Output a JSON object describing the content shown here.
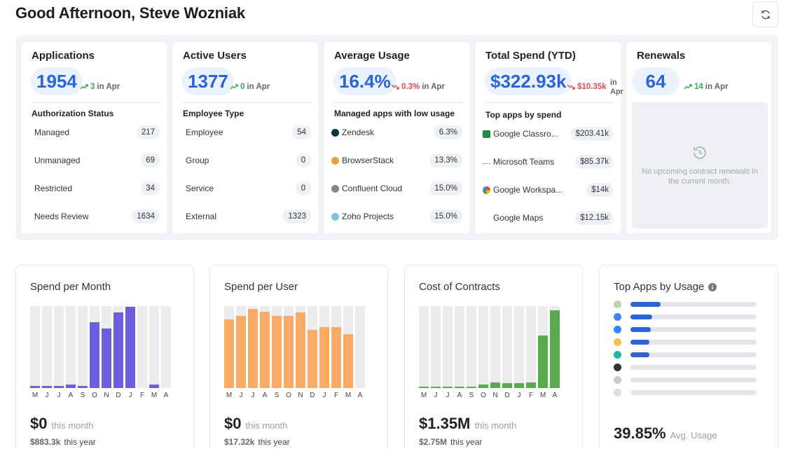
{
  "greeting": "Good Afternoon, Steve Wozniak",
  "stats": {
    "applications": {
      "title": "Applications",
      "value": "1954",
      "trend": "3",
      "trend_suffix": "in Apr",
      "section": "Authorization Status",
      "rows": [
        {
          "label": "Managed",
          "value": "217"
        },
        {
          "label": "Unmanaged",
          "value": "69"
        },
        {
          "label": "Restricted",
          "value": "34"
        },
        {
          "label": "Needs Review",
          "value": "1634"
        }
      ]
    },
    "users": {
      "title": "Active Users",
      "value": "1377",
      "trend": "0",
      "trend_suffix": "in Apr",
      "section": "Employee Type",
      "rows": [
        {
          "label": "Employee",
          "value": "54"
        },
        {
          "label": "Group",
          "value": "0"
        },
        {
          "label": "Service",
          "value": "0"
        },
        {
          "label": "External",
          "value": "1323"
        }
      ]
    },
    "usage": {
      "title": "Average Usage",
      "value": "16.4%",
      "trend": "0.3%",
      "trend_suffix": "in Apr",
      "section": "Managed apps with low usage",
      "rows": [
        {
          "label": "Zendesk",
          "value": "6.3%",
          "color": "#03363d"
        },
        {
          "label": "BrowserStack",
          "value": "13.3%",
          "color": "#e8a23a"
        },
        {
          "label": "Confluent Cloud",
          "value": "15.0%",
          "color": "#777777"
        },
        {
          "label": "Zoho Projects",
          "value": "15.0%",
          "color": "#7bc4e8"
        }
      ]
    },
    "spend": {
      "title": "Total Spend (YTD)",
      "value": "$322.93k",
      "trend": "$10.35k",
      "trend_suffix": "in Apr",
      "section": "Top apps by spend",
      "rows": [
        {
          "label": "Google Classro...",
          "value": "$203.41k",
          "color": "#1e8e3e"
        },
        {
          "label": "Microsoft Teams",
          "value": "$85.37k",
          "color": "#bbbbbb"
        },
        {
          "label": "Google Workspa...",
          "value": "$14k",
          "color": "#4285f4"
        },
        {
          "label": "Google Maps",
          "value": "$12.15k",
          "color": "#ffffff"
        }
      ]
    },
    "renewals": {
      "title": "Renewals",
      "value": "64",
      "trend": "14",
      "trend_suffix": "in Apr",
      "empty": "No upcoming contract renewals in the current month."
    }
  },
  "months": [
    "M",
    "J",
    "J",
    "A",
    "S",
    "O",
    "N",
    "D",
    "J",
    "F",
    "M",
    "A"
  ],
  "charts": {
    "spend_month": {
      "title": "Spend per Month",
      "color": "#6b5fdc",
      "values": [
        0.03,
        0.03,
        0.03,
        0.04,
        0.03,
        0.8,
        0.73,
        0.92,
        0.99,
        0.0,
        0.04,
        0.0
      ],
      "value": "$0",
      "value_suffix": "this month",
      "sub": "$883.3k",
      "sub_suffix": "this year"
    },
    "spend_user": {
      "title": "Spend per User",
      "color": "#fbab63",
      "values": [
        0.84,
        0.88,
        0.97,
        0.93,
        0.88,
        0.88,
        0.92,
        0.71,
        0.74,
        0.74,
        0.66,
        0.0
      ],
      "value": "$0",
      "value_suffix": "this month",
      "sub": "$17.32k",
      "sub_suffix": "this year"
    },
    "contracts": {
      "title": "Cost of Contracts",
      "color": "#5aaa50",
      "values": [
        0.01,
        0.01,
        0.01,
        0.01,
        0.02,
        0.04,
        0.07,
        0.06,
        0.06,
        0.07,
        0.64,
        0.95
      ],
      "value": "$1.35M",
      "value_suffix": "this month",
      "sub": "$2.75M",
      "sub_suffix": "this year"
    },
    "top_apps": {
      "title": "Top Apps by Usage",
      "apps": [
        {
          "icon": "classroom-icon",
          "color": "#b9d7a6",
          "level": 0.24
        },
        {
          "icon": "google-icon",
          "color": "#4285f4",
          "level": 0.17
        },
        {
          "icon": "zoom-icon",
          "color": "#2d8cff",
          "level": 0.16
        },
        {
          "icon": "app-icon",
          "color": "#f2c14e",
          "level": 0.15
        },
        {
          "icon": "vectorworks-icon",
          "color": "#1fb5a5",
          "level": 0.15
        },
        {
          "icon": "app-icon",
          "color": "#333333",
          "level": 0.0
        },
        {
          "icon": "app-icon",
          "color": "#c9ccd6",
          "level": 0.0
        },
        {
          "icon": "app-icon",
          "color": "#dddddd",
          "level": 0.0
        }
      ],
      "value": "39.85%",
      "value_suffix": "Avg. Usage"
    }
  }
}
